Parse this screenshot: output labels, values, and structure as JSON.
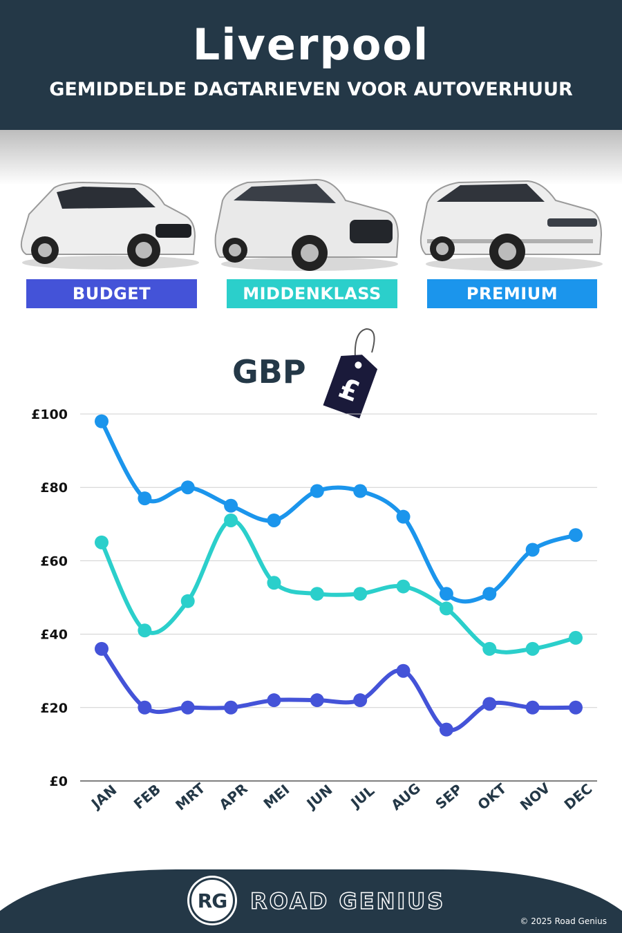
{
  "header": {
    "title": "Liverpool",
    "subtitle": "GEMIDDELDE DAGTARIEVEN VOOR AUTOVERHUUR"
  },
  "categories": [
    {
      "label": "BUDGET",
      "color": "#4453d8"
    },
    {
      "label": "MIDDENKLASS",
      "color": "#2bcfcb"
    },
    {
      "label": "PREMIUM",
      "color": "#1b95ec"
    }
  ],
  "currency_label": "GBP",
  "tag_symbol": "£",
  "chart_data": {
    "type": "line",
    "categories": [
      "JAN",
      "FEB",
      "MRT",
      "APR",
      "MEI",
      "JUN",
      "JUL",
      "AUG",
      "SEP",
      "OKT",
      "NOV",
      "DEC"
    ],
    "series": [
      {
        "name": "PREMIUM",
        "color": "#1b95ec",
        "values": [
          98,
          77,
          80,
          75,
          71,
          79,
          79,
          72,
          51,
          51,
          63,
          67
        ]
      },
      {
        "name": "MIDDENKLASS",
        "color": "#2bcfcb",
        "values": [
          65,
          41,
          49,
          71,
          54,
          51,
          51,
          53,
          47,
          36,
          36,
          39
        ]
      },
      {
        "name": "BUDGET",
        "color": "#4453d8",
        "values": [
          36,
          20,
          20,
          20,
          22,
          22,
          22,
          30,
          14,
          21,
          20,
          20
        ]
      }
    ],
    "yticks": [
      "£0",
      "£20",
      "£40",
      "£60",
      "£80",
      "£100"
    ],
    "ylim": [
      0,
      100
    ],
    "grid": true
  },
  "footer": {
    "logo_text": "RG",
    "brand": "ROAD GENIUS",
    "copyright": "© 2025 Road Genius"
  }
}
